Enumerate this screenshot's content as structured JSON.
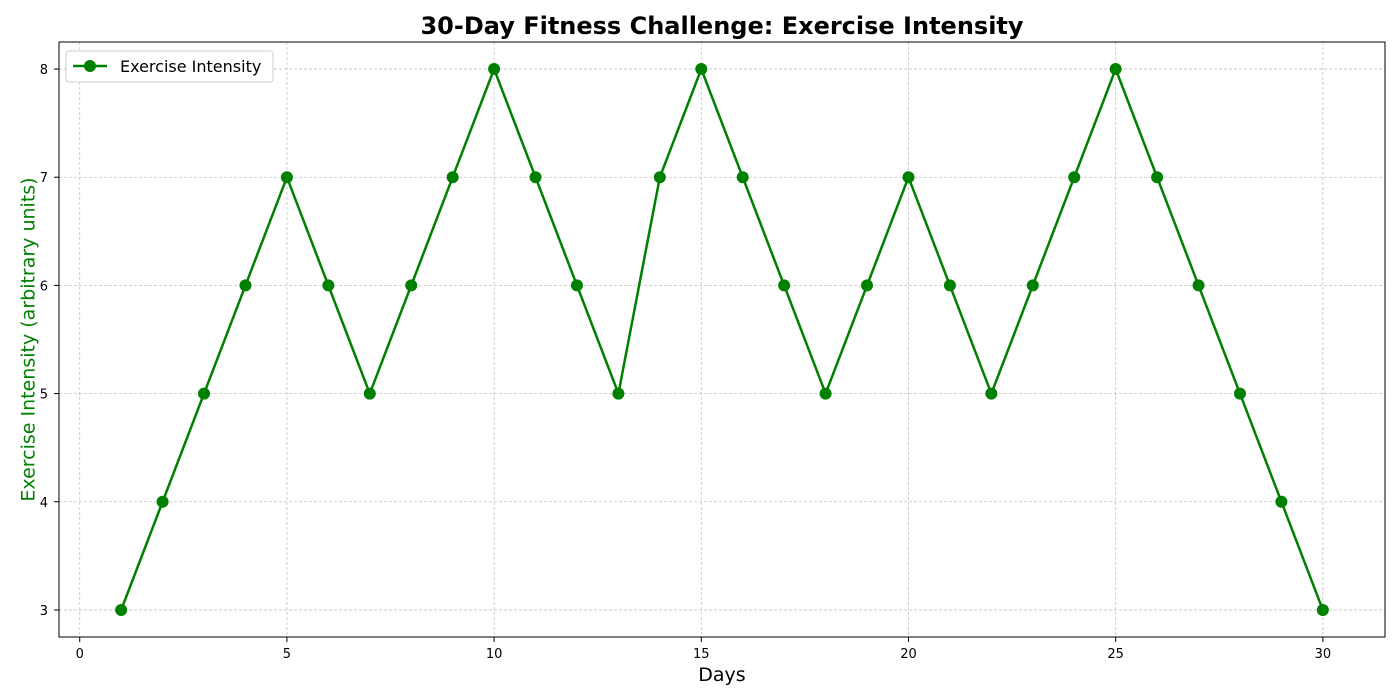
{
  "chart_data": {
    "type": "line",
    "title": "30-Day Fitness Challenge: Exercise Intensity",
    "xlabel": "Days",
    "ylabel": "Exercise Intensity (arbitrary units)",
    "xlim": [
      -0.5,
      31.5
    ],
    "ylim": [
      2.75,
      8.25
    ],
    "xticks": [
      0,
      5,
      10,
      15,
      20,
      25,
      30
    ],
    "yticks": [
      3,
      4,
      5,
      6,
      7,
      8
    ],
    "grid": true,
    "legend_position": "top-left",
    "colors": {
      "line": "#008000",
      "ylabel": "#008000",
      "axis": "#000000",
      "grid": "#b0b0b0"
    },
    "series": [
      {
        "name": "Exercise Intensity",
        "marker": "circle",
        "x": [
          1,
          2,
          3,
          4,
          5,
          6,
          7,
          8,
          9,
          10,
          11,
          12,
          13,
          14,
          15,
          16,
          17,
          18,
          19,
          20,
          21,
          22,
          23,
          24,
          25,
          26,
          27,
          28,
          29,
          30
        ],
        "y": [
          3,
          4,
          5,
          6,
          7,
          6,
          5,
          6,
          7,
          8,
          7,
          6,
          5,
          7,
          8,
          7,
          6,
          5,
          6,
          7,
          6,
          5,
          6,
          7,
          8,
          7,
          6,
          5,
          4,
          3
        ]
      }
    ]
  }
}
